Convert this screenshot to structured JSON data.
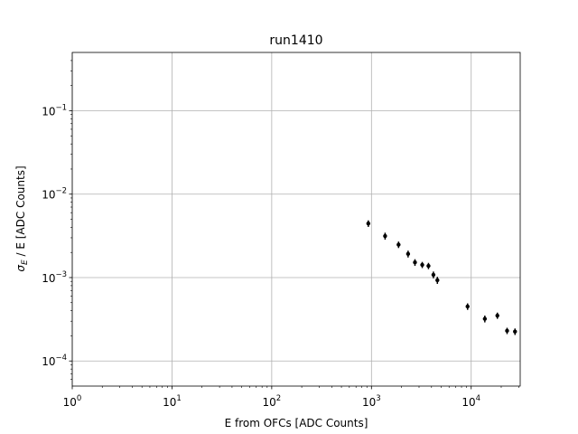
{
  "chart_data": {
    "type": "scatter",
    "title": "run1410",
    "xlabel": "E from OFCs [ADC Counts]",
    "ylabel_prefix": "σ",
    "ylabel_sub": "E",
    "ylabel_suffix": " / E [ADC Counts]",
    "x_scale": "log",
    "y_scale": "log",
    "xlim": [
      1,
      31000
    ],
    "ylim": [
      5e-05,
      0.5
    ],
    "grid": true,
    "x_ticks": [
      {
        "value": 1,
        "base": "10",
        "exp": "0"
      },
      {
        "value": 10,
        "base": "10",
        "exp": "1"
      },
      {
        "value": 100,
        "base": "10",
        "exp": "2"
      },
      {
        "value": 1000,
        "base": "10",
        "exp": "3"
      },
      {
        "value": 10000,
        "base": "10",
        "exp": "4"
      }
    ],
    "y_ticks": [
      {
        "value": 0.0001,
        "base": "10",
        "exp": "−4"
      },
      {
        "value": 0.001,
        "base": "10",
        "exp": "−3"
      },
      {
        "value": 0.01,
        "base": "10",
        "exp": "−2"
      },
      {
        "value": 0.1,
        "base": "10",
        "exp": "−1"
      }
    ],
    "marker_color": "#000000",
    "points": [
      {
        "x": 930,
        "y": 0.00445,
        "yerr": 0.0004
      },
      {
        "x": 1370,
        "y": 0.00315,
        "yerr": 0.0003
      },
      {
        "x": 1870,
        "y": 0.00248,
        "yerr": 0.00022
      },
      {
        "x": 2330,
        "y": 0.00192,
        "yerr": 0.00018
      },
      {
        "x": 2730,
        "y": 0.00152,
        "yerr": 0.00014
      },
      {
        "x": 3230,
        "y": 0.00142,
        "yerr": 0.00012
      },
      {
        "x": 3730,
        "y": 0.00138,
        "yerr": 0.00012
      },
      {
        "x": 4180,
        "y": 0.00108,
        "yerr": 0.0001
      },
      {
        "x": 4580,
        "y": 0.00093,
        "yerr": 9e-05
      },
      {
        "x": 9200,
        "y": 0.00045,
        "yerr": 4e-05
      },
      {
        "x": 13700,
        "y": 0.00032,
        "yerr": 3e-05
      },
      {
        "x": 18300,
        "y": 0.00035,
        "yerr": 3e-05
      },
      {
        "x": 22900,
        "y": 0.00023,
        "yerr": 2e-05
      },
      {
        "x": 27500,
        "y": 0.000225,
        "yerr": 2e-05
      }
    ]
  }
}
